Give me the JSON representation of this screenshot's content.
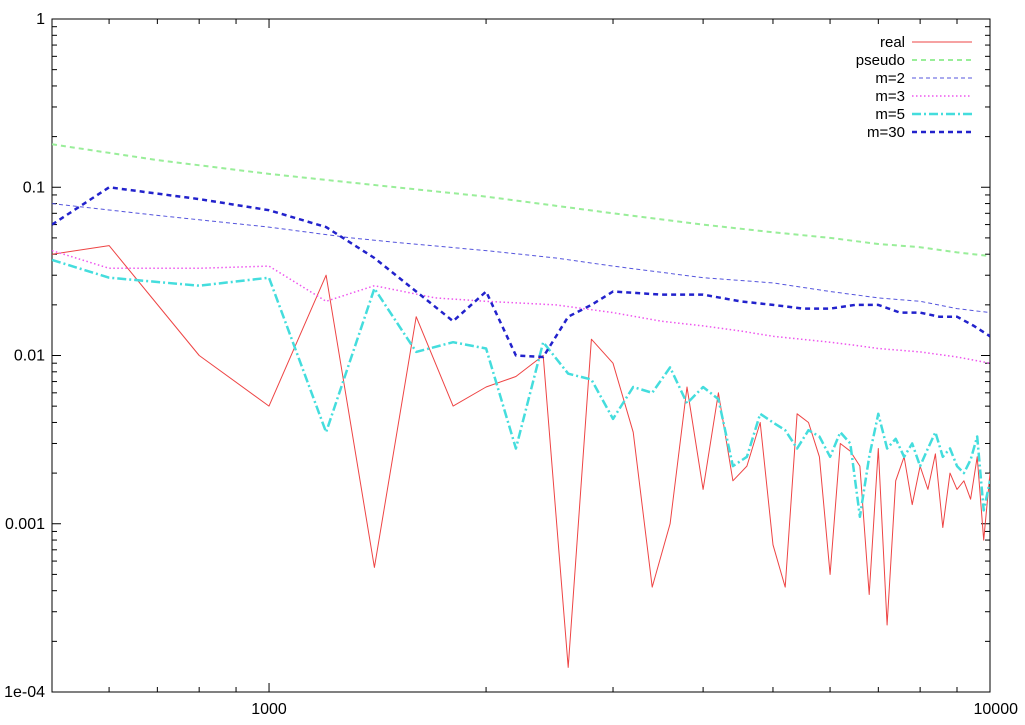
{
  "chart_data": {
    "type": "line",
    "title": "",
    "xlabel": "",
    "ylabel": "",
    "xscale": "log",
    "yscale": "log",
    "xlim": [
      500,
      10000
    ],
    "ylim": [
      0.0001,
      1
    ],
    "grid": false,
    "legend_position": "top-right",
    "x_ticks": [
      {
        "value": 1000,
        "label": "1000"
      },
      {
        "value": 10000,
        "label": "10000"
      }
    ],
    "y_ticks": [
      {
        "value": 1,
        "label": "1"
      },
      {
        "value": 0.1,
        "label": "0.1"
      },
      {
        "value": 0.01,
        "label": "0.01"
      },
      {
        "value": 0.001,
        "label": "0.001"
      },
      {
        "value": 0.0001,
        "label": "1e-04"
      }
    ],
    "series": [
      {
        "name": "real",
        "color": "#ee4444",
        "style": "solid",
        "width": 1,
        "points": [
          [
            500,
            0.04
          ],
          [
            600,
            0.045
          ],
          [
            800,
            0.01
          ],
          [
            1000,
            0.005
          ],
          [
            1200,
            0.03
          ],
          [
            1400,
            0.00055
          ],
          [
            1600,
            0.017
          ],
          [
            1800,
            0.005
          ],
          [
            2000,
            0.0065
          ],
          [
            2200,
            0.0075
          ],
          [
            2400,
            0.01
          ],
          [
            2600,
            0.00014
          ],
          [
            2800,
            0.0125
          ],
          [
            3000,
            0.009
          ],
          [
            3200,
            0.0035
          ],
          [
            3400,
            0.00042
          ],
          [
            3600,
            0.001
          ],
          [
            3800,
            0.0065
          ],
          [
            4000,
            0.0016
          ],
          [
            4200,
            0.006
          ],
          [
            4400,
            0.0018
          ],
          [
            4600,
            0.0022
          ],
          [
            4800,
            0.004
          ],
          [
            5000,
            0.00075
          ],
          [
            5200,
            0.00042
          ],
          [
            5400,
            0.0045
          ],
          [
            5600,
            0.004
          ],
          [
            5800,
            0.0025
          ],
          [
            6000,
            0.0005
          ],
          [
            6200,
            0.003
          ],
          [
            6400,
            0.0027
          ],
          [
            6600,
            0.0022
          ],
          [
            6800,
            0.00038
          ],
          [
            7000,
            0.0028
          ],
          [
            7200,
            0.00025
          ],
          [
            7400,
            0.0018
          ],
          [
            7600,
            0.0025
          ],
          [
            7800,
            0.0013
          ],
          [
            8000,
            0.0022
          ],
          [
            8200,
            0.0016
          ],
          [
            8400,
            0.0026
          ],
          [
            8600,
            0.00095
          ],
          [
            8800,
            0.002
          ],
          [
            9000,
            0.0016
          ],
          [
            9200,
            0.0018
          ],
          [
            9400,
            0.0014
          ],
          [
            9600,
            0.0025
          ],
          [
            9800,
            0.0008
          ],
          [
            10000,
            0.002
          ]
        ]
      },
      {
        "name": "pseudo",
        "color": "#99ee99",
        "style": "dashed",
        "width": 2,
        "points": [
          [
            500,
            0.18
          ],
          [
            700,
            0.145
          ],
          [
            1000,
            0.12
          ],
          [
            1500,
            0.1
          ],
          [
            2000,
            0.088
          ],
          [
            3000,
            0.07
          ],
          [
            4000,
            0.06
          ],
          [
            5000,
            0.054
          ],
          [
            6000,
            0.05
          ],
          [
            7000,
            0.046
          ],
          [
            8000,
            0.044
          ],
          [
            9000,
            0.041
          ],
          [
            10000,
            0.039
          ]
        ]
      },
      {
        "name": "m=2",
        "color": "#5555dd",
        "style": "dashed",
        "width": 1,
        "points": [
          [
            500,
            0.08
          ],
          [
            700,
            0.068
          ],
          [
            1000,
            0.058
          ],
          [
            1300,
            0.05
          ],
          [
            1500,
            0.047
          ],
          [
            2000,
            0.042
          ],
          [
            2500,
            0.038
          ],
          [
            3000,
            0.034
          ],
          [
            4000,
            0.029
          ],
          [
            5000,
            0.027
          ],
          [
            6000,
            0.024
          ],
          [
            7000,
            0.022
          ],
          [
            8000,
            0.021
          ],
          [
            9000,
            0.019
          ],
          [
            10000,
            0.018
          ]
        ]
      },
      {
        "name": "m=3",
        "color": "#ee55ee",
        "style": "dotted",
        "width": 1.5,
        "points": [
          [
            500,
            0.042
          ],
          [
            600,
            0.033
          ],
          [
            800,
            0.033
          ],
          [
            1000,
            0.034
          ],
          [
            1200,
            0.021
          ],
          [
            1400,
            0.026
          ],
          [
            1700,
            0.022
          ],
          [
            2000,
            0.021
          ],
          [
            2500,
            0.02
          ],
          [
            3000,
            0.018
          ],
          [
            3500,
            0.016
          ],
          [
            4000,
            0.015
          ],
          [
            4500,
            0.014
          ],
          [
            5000,
            0.013
          ],
          [
            6000,
            0.012
          ],
          [
            6500,
            0.0115
          ],
          [
            7000,
            0.011
          ],
          [
            8000,
            0.0105
          ],
          [
            9000,
            0.0098
          ],
          [
            10000,
            0.009
          ]
        ]
      },
      {
        "name": "m=5",
        "color": "#44dddd",
        "style": "dashdot",
        "width": 2.5,
        "points": [
          [
            500,
            0.037
          ],
          [
            600,
            0.029
          ],
          [
            800,
            0.026
          ],
          [
            1000,
            0.029
          ],
          [
            1200,
            0.0035
          ],
          [
            1400,
            0.025
          ],
          [
            1600,
            0.0105
          ],
          [
            1800,
            0.012
          ],
          [
            2000,
            0.011
          ],
          [
            2200,
            0.0028
          ],
          [
            2400,
            0.012
          ],
          [
            2600,
            0.0078
          ],
          [
            2800,
            0.0072
          ],
          [
            3000,
            0.0042
          ],
          [
            3200,
            0.0065
          ],
          [
            3400,
            0.006
          ],
          [
            3600,
            0.0085
          ],
          [
            3800,
            0.0052
          ],
          [
            4000,
            0.0065
          ],
          [
            4200,
            0.0055
          ],
          [
            4400,
            0.0022
          ],
          [
            4600,
            0.0025
          ],
          [
            4800,
            0.0045
          ],
          [
            5000,
            0.004
          ],
          [
            5200,
            0.0036
          ],
          [
            5400,
            0.0028
          ],
          [
            5600,
            0.0036
          ],
          [
            5800,
            0.0033
          ],
          [
            6000,
            0.0025
          ],
          [
            6200,
            0.0035
          ],
          [
            6400,
            0.003
          ],
          [
            6600,
            0.0011
          ],
          [
            6800,
            0.0025
          ],
          [
            7000,
            0.0045
          ],
          [
            7200,
            0.0028
          ],
          [
            7400,
            0.0032
          ],
          [
            7600,
            0.0025
          ],
          [
            7800,
            0.003
          ],
          [
            8000,
            0.0022
          ],
          [
            8200,
            0.0028
          ],
          [
            8400,
            0.0035
          ],
          [
            8600,
            0.0025
          ],
          [
            8800,
            0.0028
          ],
          [
            9000,
            0.0022
          ],
          [
            9200,
            0.002
          ],
          [
            9400,
            0.0024
          ],
          [
            9600,
            0.0033
          ],
          [
            9800,
            0.0012
          ],
          [
            10000,
            0.0018
          ]
        ]
      },
      {
        "name": "m=30",
        "color": "#2222cc",
        "style": "dashed",
        "width": 2.5,
        "points": [
          [
            500,
            0.06
          ],
          [
            600,
            0.1
          ],
          [
            800,
            0.085
          ],
          [
            1000,
            0.073
          ],
          [
            1200,
            0.058
          ],
          [
            1400,
            0.038
          ],
          [
            1600,
            0.024
          ],
          [
            1800,
            0.016
          ],
          [
            2000,
            0.024
          ],
          [
            2200,
            0.01
          ],
          [
            2400,
            0.0098
          ],
          [
            2600,
            0.017
          ],
          [
            2800,
            0.02
          ],
          [
            3000,
            0.024
          ],
          [
            3500,
            0.023
          ],
          [
            4000,
            0.023
          ],
          [
            4500,
            0.021
          ],
          [
            5000,
            0.02
          ],
          [
            5500,
            0.019
          ],
          [
            6000,
            0.019
          ],
          [
            6500,
            0.02
          ],
          [
            7000,
            0.02
          ],
          [
            7500,
            0.018
          ],
          [
            8000,
            0.018
          ],
          [
            8500,
            0.017
          ],
          [
            9000,
            0.017
          ],
          [
            9500,
            0.015
          ],
          [
            10000,
            0.013
          ]
        ]
      }
    ]
  }
}
